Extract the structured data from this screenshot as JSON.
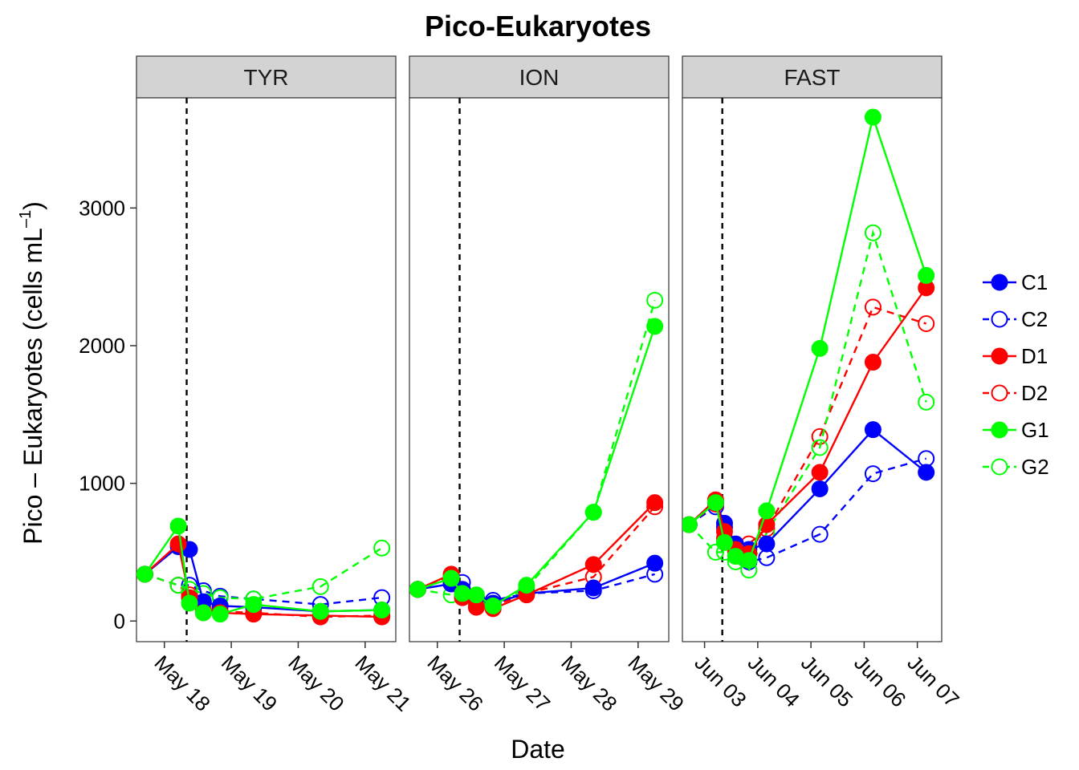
{
  "chart_data": {
    "type": "line",
    "title": "Pico-Eukaryotes",
    "xlabel": "Date",
    "ylabel_main": "Pico – Eukaryotes (cells mL",
    "ylabel_sup": "–1",
    "ylabel_close": ")",
    "ylim": [
      -150,
      3800
    ],
    "yticks": [
      0,
      1000,
      2000,
      3000
    ],
    "ytick_labels": [
      "0",
      "1000",
      "2000",
      "3000"
    ],
    "colors": {
      "C": "#0000ff",
      "D": "#ff0000",
      "G": "#00ff00"
    },
    "legend": [
      {
        "name": "C1",
        "color": "#0000ff",
        "filled": true,
        "dashed": false
      },
      {
        "name": "C2",
        "color": "#0000ff",
        "filled": false,
        "dashed": true
      },
      {
        "name": "D1",
        "color": "#ff0000",
        "filled": true,
        "dashed": false
      },
      {
        "name": "D2",
        "color": "#ff0000",
        "filled": false,
        "dashed": true
      },
      {
        "name": "G1",
        "color": "#00ff00",
        "filled": true,
        "dashed": false
      },
      {
        "name": "G2",
        "color": "#00ff00",
        "filled": false,
        "dashed": true
      }
    ],
    "panels": [
      {
        "name": "TYR",
        "xlim": [
          "2015-05-17 14:00",
          "2015-05-21 11:00"
        ],
        "xticks": [
          "2015-05-18 00:00",
          "2015-05-19 00:00",
          "2015-05-20 00:00",
          "2015-05-21 00:00"
        ],
        "xtick_labels": [
          "May 18",
          "May 19",
          "May 20",
          "May 21"
        ],
        "vline": "2015-05-18 08:00",
        "series": [
          {
            "name": "C1",
            "x": [
              "2015-05-17 17:00",
              "2015-05-18 05:00",
              "2015-05-18 09:00",
              "2015-05-18 14:00",
              "2015-05-18 20:00",
              "2015-05-19 08:00",
              "2015-05-20 08:00",
              "2015-05-21 06:00"
            ],
            "y": [
              340,
              540,
              520,
              140,
              110,
              100,
              70,
              80
            ]
          },
          {
            "name": "C2",
            "x": [
              "2015-05-17 17:00",
              "2015-05-18 05:00",
              "2015-05-18 09:00",
              "2015-05-18 14:00",
              "2015-05-18 20:00",
              "2015-05-19 08:00",
              "2015-05-20 08:00",
              "2015-05-21 06:00"
            ],
            "y": [
              340,
              260,
              260,
              220,
              180,
              160,
              120,
              170
            ]
          },
          {
            "name": "D1",
            "x": [
              "2015-05-17 17:00",
              "2015-05-18 05:00",
              "2015-05-18 09:00",
              "2015-05-18 14:00",
              "2015-05-18 20:00",
              "2015-05-19 08:00",
              "2015-05-20 08:00",
              "2015-05-21 06:00"
            ],
            "y": [
              340,
              560,
              170,
              60,
              60,
              50,
              40,
              30
            ]
          },
          {
            "name": "D2",
            "x": [
              "2015-05-17 17:00",
              "2015-05-18 05:00",
              "2015-05-18 09:00",
              "2015-05-18 14:00",
              "2015-05-18 20:00",
              "2015-05-19 08:00",
              "2015-05-20 08:00",
              "2015-05-21 06:00"
            ],
            "y": [
              340,
              260,
              190,
              80,
              70,
              60,
              30,
              40
            ]
          },
          {
            "name": "G1",
            "x": [
              "2015-05-17 17:00",
              "2015-05-18 05:00",
              "2015-05-18 09:00",
              "2015-05-18 14:00",
              "2015-05-18 20:00",
              "2015-05-19 08:00",
              "2015-05-20 08:00",
              "2015-05-21 06:00"
            ],
            "y": [
              340,
              690,
              130,
              60,
              50,
              120,
              70,
              80
            ]
          },
          {
            "name": "G2",
            "x": [
              "2015-05-17 17:00",
              "2015-05-18 05:00",
              "2015-05-18 09:00",
              "2015-05-18 14:00",
              "2015-05-18 20:00",
              "2015-05-19 08:00",
              "2015-05-20 08:00",
              "2015-05-21 06:00"
            ],
            "y": [
              340,
              260,
              230,
              200,
              170,
              160,
              250,
              530
            ]
          }
        ]
      },
      {
        "name": "ION",
        "xlim": [
          "2015-05-25 14:00",
          "2015-05-29 11:00"
        ],
        "xticks": [
          "2015-05-26 00:00",
          "2015-05-27 00:00",
          "2015-05-28 00:00",
          "2015-05-29 00:00"
        ],
        "xtick_labels": [
          "May 26",
          "May 27",
          "May 28",
          "May 29"
        ],
        "vline": "2015-05-26 08:00",
        "series": [
          {
            "name": "C1",
            "x": [
              "2015-05-25 17:00",
              "2015-05-26 05:00",
              "2015-05-26 09:00",
              "2015-05-26 14:00",
              "2015-05-26 20:00",
              "2015-05-27 08:00",
              "2015-05-28 08:00",
              "2015-05-29 06:00"
            ],
            "y": [
              230,
              270,
              230,
              170,
              130,
              200,
              240,
              420
            ]
          },
          {
            "name": "C2",
            "x": [
              "2015-05-25 17:00",
              "2015-05-26 05:00",
              "2015-05-26 09:00",
              "2015-05-26 14:00",
              "2015-05-26 20:00",
              "2015-05-27 08:00",
              "2015-05-28 08:00",
              "2015-05-29 06:00"
            ],
            "y": [
              230,
              270,
              280,
              170,
              150,
              200,
              220,
              340
            ]
          },
          {
            "name": "D1",
            "x": [
              "2015-05-25 17:00",
              "2015-05-26 05:00",
              "2015-05-26 09:00",
              "2015-05-26 14:00",
              "2015-05-26 20:00",
              "2015-05-27 08:00",
              "2015-05-28 08:00",
              "2015-05-29 06:00"
            ],
            "y": [
              230,
              340,
              170,
              100,
              90,
              190,
              410,
              860
            ]
          },
          {
            "name": "D2",
            "x": [
              "2015-05-25 17:00",
              "2015-05-26 05:00",
              "2015-05-26 09:00",
              "2015-05-26 14:00",
              "2015-05-26 20:00",
              "2015-05-27 08:00",
              "2015-05-28 08:00",
              "2015-05-29 06:00"
            ],
            "y": [
              230,
              330,
              200,
              130,
              110,
              200,
              320,
              830
            ]
          },
          {
            "name": "G1",
            "x": [
              "2015-05-25 17:00",
              "2015-05-26 05:00",
              "2015-05-26 09:00",
              "2015-05-26 14:00",
              "2015-05-26 20:00",
              "2015-05-27 08:00",
              "2015-05-28 08:00",
              "2015-05-29 06:00"
            ],
            "y": [
              230,
              310,
              200,
              190,
              110,
              260,
              790,
              2140
            ]
          },
          {
            "name": "G2",
            "x": [
              "2015-05-25 17:00",
              "2015-05-26 05:00",
              "2015-05-26 09:00",
              "2015-05-26 14:00",
              "2015-05-26 20:00",
              "2015-05-27 08:00",
              "2015-05-28 08:00",
              "2015-05-29 06:00"
            ],
            "y": [
              230,
              190,
              180,
              140,
              110,
              240,
              790,
              2330
            ]
          }
        ]
      },
      {
        "name": "FAST",
        "xlim": [
          "2015-06-02 14:00",
          "2015-06-07 11:00"
        ],
        "xticks": [
          "2015-06-03 00:00",
          "2015-06-04 00:00",
          "2015-06-05 00:00",
          "2015-06-06 00:00",
          "2015-06-07 00:00"
        ],
        "xtick_labels": [
          "Jun 03",
          "Jun 04",
          "Jun 05",
          "Jun 06",
          "Jun 07"
        ],
        "vline": "2015-06-03 08:00",
        "series": [
          {
            "name": "C1",
            "x": [
              "2015-06-02 17:00",
              "2015-06-03 05:00",
              "2015-06-03 09:00",
              "2015-06-03 14:00",
              "2015-06-03 20:00",
              "2015-06-04 04:00",
              "2015-06-05 04:00",
              "2015-06-06 04:00",
              "2015-06-07 04:00"
            ],
            "y": [
              700,
              860,
              710,
              560,
              520,
              560,
              960,
              1390,
              1080
            ]
          },
          {
            "name": "C2",
            "x": [
              "2015-06-02 17:00",
              "2015-06-03 05:00",
              "2015-06-03 09:00",
              "2015-06-03 14:00",
              "2015-06-03 20:00",
              "2015-06-04 04:00",
              "2015-06-05 04:00",
              "2015-06-06 04:00",
              "2015-06-07 04:00"
            ],
            "y": [
              700,
              830,
              680,
              530,
              430,
              460,
              630,
              1070,
              1180
            ]
          },
          {
            "name": "D1",
            "x": [
              "2015-06-02 17:00",
              "2015-06-03 05:00",
              "2015-06-03 09:00",
              "2015-06-03 14:00",
              "2015-06-03 20:00",
              "2015-06-04 04:00",
              "2015-06-05 04:00",
              "2015-06-06 04:00",
              "2015-06-07 04:00"
            ],
            "y": [
              700,
              880,
              650,
              520,
              490,
              700,
              1080,
              1880,
              2420
            ]
          },
          {
            "name": "D2",
            "x": [
              "2015-06-02 17:00",
              "2015-06-03 05:00",
              "2015-06-03 09:00",
              "2015-06-03 14:00",
              "2015-06-03 20:00",
              "2015-06-04 04:00",
              "2015-06-05 04:00",
              "2015-06-06 04:00",
              "2015-06-07 04:00"
            ],
            "y": [
              700,
              850,
              600,
              510,
              560,
              670,
              1340,
              2280,
              2160
            ]
          },
          {
            "name": "G1",
            "x": [
              "2015-06-02 17:00",
              "2015-06-03 05:00",
              "2015-06-03 09:00",
              "2015-06-03 14:00",
              "2015-06-03 20:00",
              "2015-06-04 04:00",
              "2015-06-05 04:00",
              "2015-06-06 04:00",
              "2015-06-07 04:00"
            ],
            "y": [
              700,
              860,
              570,
              470,
              440,
              800,
              1980,
              3660,
              2510
            ]
          },
          {
            "name": "G2",
            "x": [
              "2015-06-02 17:00",
              "2015-06-03 05:00",
              "2015-06-03 09:00",
              "2015-06-03 14:00",
              "2015-06-03 20:00",
              "2015-06-04 04:00",
              "2015-06-05 04:00",
              "2015-06-06 04:00",
              "2015-06-07 04:00"
            ],
            "y": [
              700,
              500,
              500,
              430,
              370,
              640,
              1260,
              2820,
              1590
            ]
          }
        ]
      }
    ]
  }
}
